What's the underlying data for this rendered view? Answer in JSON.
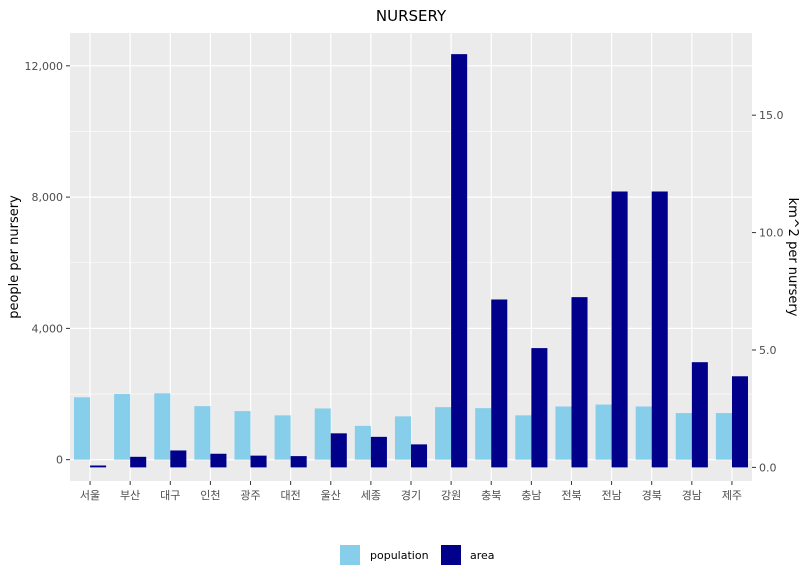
{
  "chart_data": {
    "type": "bar",
    "title": "NURSERY",
    "xlabel": "",
    "ylabel": "people per nursery",
    "y2label": "km^2 per nursery",
    "categories": [
      "서울",
      "부산",
      "대구",
      "인천",
      "광주",
      "대전",
      "울산",
      "세종",
      "경기",
      "강원",
      "충북",
      "충남",
      "전북",
      "전남",
      "경북",
      "경남",
      "제주"
    ],
    "series": [
      {
        "name": "population",
        "axis": "left",
        "color": "#87CEEB",
        "values": [
          1900,
          2000,
          2020,
          1630,
          1480,
          1350,
          1560,
          1030,
          1320,
          1600,
          1570,
          1350,
          1620,
          1680,
          1620,
          1420,
          1420
        ]
      },
      {
        "name": "area",
        "axis": "right",
        "color": "#00008B",
        "values": [
          0.08,
          0.45,
          0.72,
          0.58,
          0.5,
          0.48,
          1.45,
          1.3,
          0.98,
          17.6,
          7.15,
          5.08,
          7.25,
          11.75,
          11.75,
          4.48,
          3.88
        ]
      }
    ],
    "ylim": [
      -650,
      13000
    ],
    "y2lim": [
      -0.58,
      18.5
    ],
    "yticks": [
      0,
      4000,
      8000,
      12000
    ],
    "ytick_labels": [
      "0",
      "4,000",
      "8,000",
      "12,000"
    ],
    "y2ticks": [
      0,
      5,
      10,
      15
    ],
    "y2tick_labels": [
      "0.0",
      "5.0",
      "10.0",
      "15.0"
    ],
    "grid": true,
    "legend_position": "bottom",
    "colors": {
      "panel_bg": "#EBEBEB",
      "grid": "#FFFFFF",
      "population": "#87CEEB",
      "area": "#00008B"
    }
  }
}
